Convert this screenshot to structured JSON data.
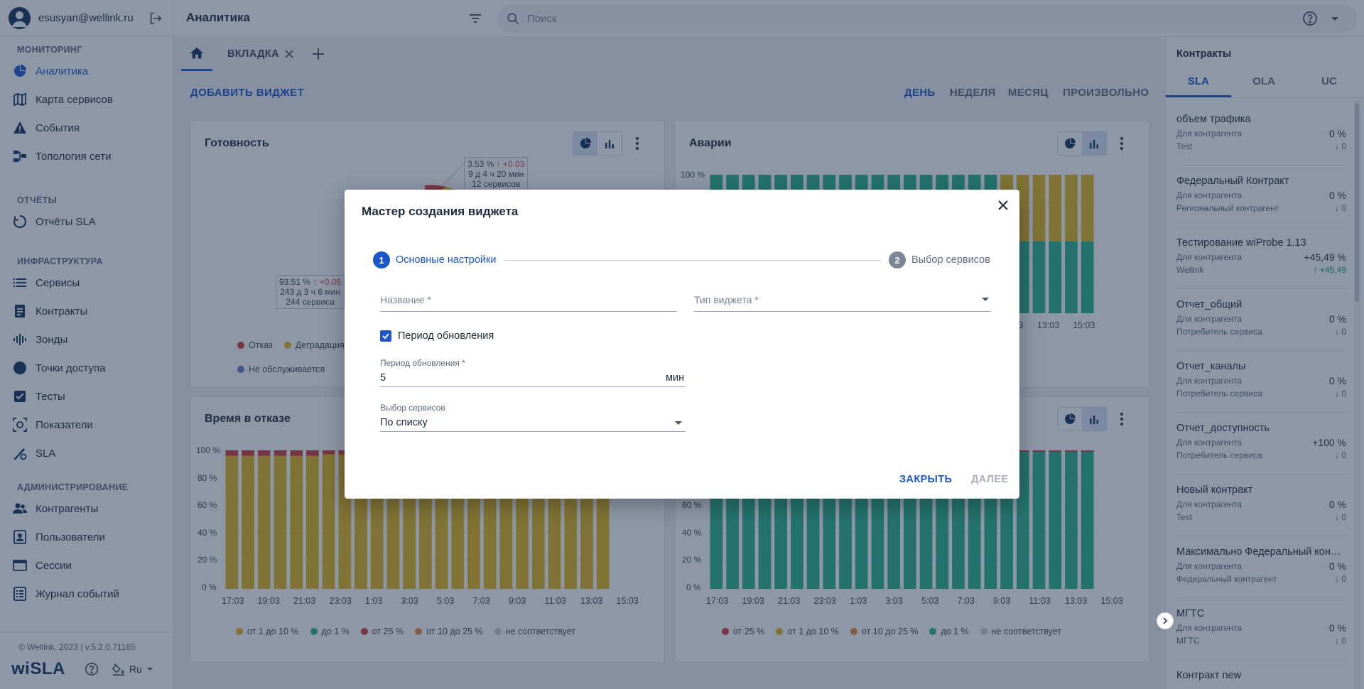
{
  "user": {
    "email": "esusyan@wellink.ru"
  },
  "sidebar": {
    "sections": [
      {
        "title": "МОНИТОРИНГ",
        "items": [
          {
            "label": "Аналитика",
            "icon": "pie-chart-icon",
            "active": true
          },
          {
            "label": "Карта сервисов",
            "icon": "map-icon"
          },
          {
            "label": "События",
            "icon": "warning-icon"
          },
          {
            "label": "Топология сети",
            "icon": "topology-icon"
          }
        ]
      },
      {
        "title": "ОТЧЁТЫ",
        "items": [
          {
            "label": "Отчёты SLA",
            "icon": "reports-icon"
          }
        ]
      },
      {
        "title": "ИНФРАСТРУКТУРА",
        "items": [
          {
            "label": "Сервисы",
            "icon": "list-icon"
          },
          {
            "label": "Контракты",
            "icon": "contract-icon"
          },
          {
            "label": "Зонды",
            "icon": "probe-icon"
          },
          {
            "label": "Точки доступа",
            "icon": "access-point-icon"
          },
          {
            "label": "Тесты",
            "icon": "tests-icon"
          },
          {
            "label": "Показатели",
            "icon": "metrics-icon"
          },
          {
            "label": "SLA",
            "icon": "sla-icon"
          }
        ]
      },
      {
        "title": "АДМИНИСТРИРОВАНИЕ",
        "items": [
          {
            "label": "Контрагенты",
            "icon": "people-icon"
          },
          {
            "label": "Пользователи",
            "icon": "user-card-icon"
          },
          {
            "label": "Сессии",
            "icon": "sessions-icon"
          },
          {
            "label": "Журнал событий",
            "icon": "log-icon"
          }
        ]
      }
    ],
    "copyright": "© Wellink, 2023 | v.5.2.0.71165",
    "logo": "wiSLA",
    "lang": "Ru"
  },
  "header": {
    "title": "Аналитика",
    "search_placeholder": "Поиск"
  },
  "tabs": {
    "items": [
      "ВКЛАДКА"
    ]
  },
  "toolbar": {
    "add_widget": "ДОБАВИТЬ ВИДЖЕТ",
    "periods": [
      "ДЕНЬ",
      "НЕДЕЛЯ",
      "МЕСЯЦ",
      "ПРОИЗВОЛЬНО"
    ],
    "active_period": "ДЕНЬ"
  },
  "widgets": {
    "readiness": {
      "title": "Готовность",
      "callout1": {
        "line1": "3.53 %",
        "delta": "↑ +0.03",
        "line2": "9 д 4 ч 20 мин",
        "line3": "12 сервисов"
      },
      "callout2": {
        "line1": "93.51 %",
        "delta": "↑ +0.05",
        "line2": "243 д 3 ч 6 мин",
        "line3": "244 сервиса"
      },
      "legend": [
        {
          "label": "Отказ",
          "color": "#d23b3b"
        },
        {
          "label": "Деградация",
          "color": "#e3b71d"
        },
        {
          "label": "Не обслуживается",
          "color": "#6c74c9"
        }
      ]
    },
    "accidents": {
      "title": "Аварии"
    },
    "downtime": {
      "title": "Время в отказе",
      "legend": [
        {
          "label": "от 1 до 10 %",
          "color": "#e3b71d"
        },
        {
          "label": "до 1 %",
          "color": "#2bb58e"
        },
        {
          "label": "от 25 %",
          "color": "#d23b3b"
        },
        {
          "label": "от 10 до 25 %",
          "color": "#ef8b3a"
        },
        {
          "label": "не соответствует",
          "color": "#c9ced6"
        }
      ]
    },
    "fourth": {
      "legend": [
        {
          "label": "от 25 %",
          "color": "#d23b3b"
        },
        {
          "label": "от 1 до 10 %",
          "color": "#e3b71d"
        },
        {
          "label": "от 10 до 25 %",
          "color": "#ef8b3a"
        },
        {
          "label": "до 1 %",
          "color": "#2bb58e"
        },
        {
          "label": "не соответствует",
          "color": "#c9ced6"
        }
      ]
    }
  },
  "axes": {
    "y_ticks": [
      "100 %",
      "80 %",
      "60 %",
      "40 %",
      "20 %",
      "0 %"
    ],
    "x_ticks": [
      "17:03",
      "19:03",
      "21:03",
      "23:03",
      "1:03",
      "3:03",
      "5:03",
      "7:03",
      "9:03",
      "11:03",
      "13:03",
      "15:03"
    ],
    "accidents_visible_x": [
      "11:03",
      "13:03",
      "15:03"
    ]
  },
  "chart_data": [
    {
      "type": "bar",
      "title": "Аварии",
      "bars": 24,
      "ylim": [
        0,
        100
      ],
      "series": [
        {
          "name": "",
          "color": "#2bb58e",
          "values": [
            100,
            100,
            100,
            100,
            100,
            100,
            100,
            100,
            100,
            100,
            100,
            100,
            100,
            100,
            100,
            100,
            100,
            100,
            52,
            52,
            52,
            52,
            52,
            52
          ]
        },
        {
          "name": "",
          "color": "#e3b71d",
          "values": [
            0,
            0,
            0,
            0,
            0,
            0,
            0,
            0,
            0,
            0,
            0,
            0,
            0,
            0,
            0,
            0,
            0,
            0,
            48,
            48,
            48,
            48,
            48,
            48
          ]
        }
      ]
    },
    {
      "type": "bar",
      "title": "Время в отказе",
      "bars": 24,
      "ylim": [
        0,
        100
      ],
      "series": [
        {
          "name": "от 1 до 10 %",
          "color": "#e3b71d",
          "values": [
            96,
            96,
            96,
            96,
            96,
            96,
            97,
            97,
            97,
            97,
            97,
            97,
            97,
            97,
            97,
            97,
            97,
            97,
            97,
            97,
            97,
            97,
            97,
            97
          ]
        },
        {
          "name": "от 25 %",
          "color": "#d23b3b",
          "values": [
            4,
            4,
            4,
            4,
            4,
            4,
            3,
            3,
            3,
            3,
            3,
            3,
            3,
            3,
            3,
            3,
            3,
            3,
            3,
            3,
            3,
            3,
            3,
            3
          ]
        }
      ]
    },
    {
      "type": "bar",
      "bars": 24,
      "ylim": [
        0,
        100
      ],
      "series": [
        {
          "name": "до 1 %",
          "color": "#2bb58e",
          "values": [
            99,
            99,
            99,
            99,
            99,
            99,
            99,
            99,
            99,
            99,
            99,
            99,
            99,
            99,
            99,
            99,
            99,
            99,
            99,
            99,
            99,
            99,
            99,
            99
          ]
        },
        {
          "name": "от 25 %",
          "color": "#d23b3b",
          "values": [
            1,
            1,
            1,
            1,
            1,
            1,
            1,
            1,
            1,
            1,
            1,
            1,
            1,
            1,
            1,
            1,
            1,
            1,
            1,
            1,
            1,
            1,
            1,
            1
          ]
        }
      ]
    }
  ],
  "contracts_panel": {
    "title": "Контракты",
    "tabs": [
      "SLA",
      "OLA",
      "UC"
    ],
    "items": [
      {
        "name": "объем трафика",
        "for": "Для контрагента",
        "sub": "Test",
        "value": "0 %",
        "delta": "↓ 0"
      },
      {
        "name": "Федеральный Контракт",
        "for": "Для контрагента",
        "sub": "Региональный контрагент",
        "value": "0 %",
        "delta": "↓ 0"
      },
      {
        "name": "Тестирование wiProbe 1.13",
        "for": "Для контрагента",
        "sub": "Wellink",
        "value": "+45,49 %",
        "delta": "↑ +45,49",
        "up": true
      },
      {
        "name": "Отчет_общий",
        "for": "Для контрагента",
        "sub": "Потребитель сервиса",
        "value": "0 %",
        "delta": "↓ 0"
      },
      {
        "name": "Отчет_каналы",
        "for": "Для контрагента",
        "sub": "Потребитель сервиса",
        "value": "0 %",
        "delta": "↓ 0"
      },
      {
        "name": "Отчет_доступность",
        "for": "Для контрагента",
        "sub": "Потребитель сервиса",
        "value": "+100 %",
        "delta": "↓ 0"
      },
      {
        "name": "Новый контракт",
        "for": "Для контрагента",
        "sub": "Test",
        "value": "0 %",
        "delta": "↓ 0"
      },
      {
        "name": "Максимально Федеральный кон…",
        "for": "Для контрагента",
        "sub": "Федеральный контрагент",
        "value": "0 %",
        "delta": "↓ 0"
      },
      {
        "name": "МГТС",
        "for": "Для контрагента",
        "sub": "МГТС",
        "value": "0 %",
        "delta": "↓ 0"
      },
      {
        "name": "Контракт new",
        "for": "",
        "sub": "",
        "value": "",
        "delta": ""
      }
    ]
  },
  "modal": {
    "title": "Мастер создания виджета",
    "steps": [
      {
        "num": "1",
        "label": "Основные настройки"
      },
      {
        "num": "2",
        "label": "Выбор сервисов"
      }
    ],
    "name_label": "Название *",
    "type_label": "Тип виджета *",
    "refresh_checkbox": "Период обновления",
    "refresh_label": "Период обновления *",
    "refresh_value": "5",
    "refresh_unit": "мин",
    "services_label": "Выбор сервисов",
    "services_value": "По списку",
    "close_btn": "ЗАКРЫТЬ",
    "next_btn": "ДАЛЕЕ"
  }
}
